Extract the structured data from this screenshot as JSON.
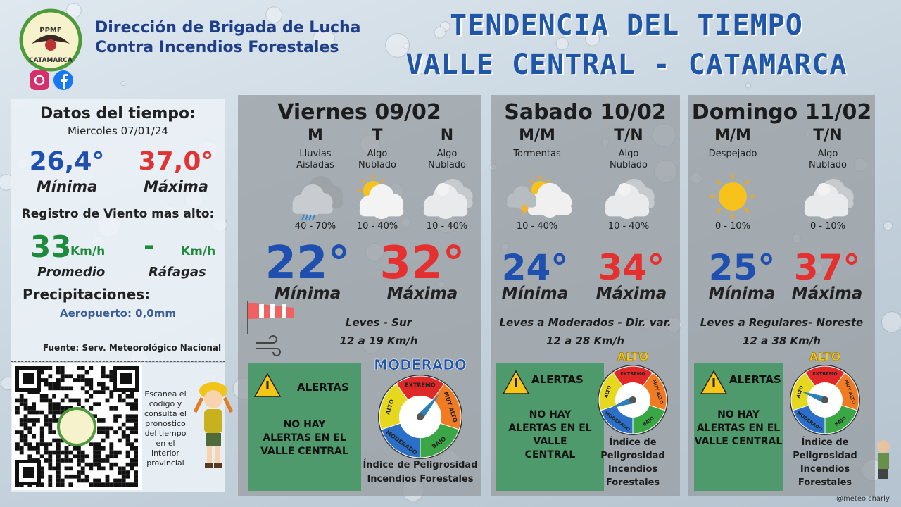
{
  "header": {
    "org_line1": "Dirección de Brigada de Lucha",
    "org_line2": "Contra Incendios Forestales",
    "logo_top": "PPMF",
    "logo_bottom": "CATAMARCA",
    "title_line1": "TENDENCIA DEL TIEMPO",
    "title_line2": "VALLE CENTRAL - CATAMARCA"
  },
  "current": {
    "title": "Datos del tiempo:",
    "date": "Miercoles 07/01/24",
    "min": "26,4°",
    "min_label": "Mínima",
    "max": "37,0°",
    "max_label": "Máxima",
    "wind_title": "Registro de Viento mas alto:",
    "wind_avg": "33",
    "wind_avg_unit": "Km/h",
    "wind_avg_label": "Promedio",
    "wind_gust": "-",
    "wind_gust_unit": "Km/h",
    "wind_gust_label": "Ráfagas",
    "precip_title": "Precipitaciones:",
    "precip_airport": "Aeropuerto: 0,0mm",
    "source": "Fuente: Serv. Meteorológico Nacional"
  },
  "qr": {
    "text_lines": [
      "Escanea el",
      "codigo y",
      "consulta el",
      "pronostico",
      "del tiempo",
      "en el",
      "interior",
      "provincial"
    ]
  },
  "days": [
    {
      "name": "Viernes 09/02",
      "periods": [
        {
          "label": "M",
          "desc": "Lluvias Aisladas",
          "prob": "40 - 70%"
        },
        {
          "label": "T",
          "desc": "Algo Nublado",
          "prob": "10 - 40%"
        },
        {
          "label": "N",
          "desc": "Algo Nublado",
          "prob": "10 - 40%"
        }
      ],
      "min": "22°",
      "min_label": "Mínima",
      "max": "32°",
      "max_label": "Máxima",
      "wind_desc": "Leves - Sur",
      "wind_speed": "12 a 19 Km/h",
      "alert_title": "ALERTAS",
      "alert_lines": [
        "NO HAY",
        "ALERTAS EN EL",
        "VALLE CENTRAL"
      ],
      "danger_level": "MODERADO",
      "danger_caption": [
        "Índice de Peligrosidad",
        "Incendios Forestales"
      ]
    },
    {
      "name": "Sabado 10/02",
      "periods": [
        {
          "label": "M/M",
          "desc": "Tormentas",
          "prob": "10 - 40%"
        },
        {
          "label": "T/N",
          "desc": "Algo Nublado",
          "prob": "10 - 40%"
        }
      ],
      "min": "24°",
      "min_label": "Mínima",
      "max": "34°",
      "max_label": "Máxima",
      "wind_desc": "Leves a Moderados - Dir. var.",
      "wind_speed": "12 a 28 Km/h",
      "alert_title": "ALERTAS",
      "alert_lines": [
        "NO HAY",
        "ALERTAS EN EL",
        "VALLE",
        "CENTRAL"
      ],
      "danger_level": "ALTO",
      "danger_caption": [
        "Índice de",
        "Peligrosidad",
        "Incendios",
        "Forestales"
      ]
    },
    {
      "name": "Domingo 11/02",
      "periods": [
        {
          "label": "M/M",
          "desc": "Despejado",
          "prob": "0 - 10%"
        },
        {
          "label": "T/N",
          "desc": "Algo Nublado",
          "prob": "0 - 10%"
        }
      ],
      "min": "25°",
      "min_label": "Mínima",
      "max": "37°",
      "max_label": "Máxima",
      "wind_desc": "Leves a Regulares- Noreste",
      "wind_speed": "12 a 38 Km/h",
      "alert_title": "ALERTAS",
      "alert_lines": [
        "NO HAY",
        "ALERTAS EN EL",
        "VALLE CENTRAL"
      ],
      "danger_level": "ALTO",
      "danger_caption": [
        "Índice de",
        "Peligrosidad",
        "Incendios",
        "Forestales"
      ]
    }
  ],
  "gauge_labels": [
    "EXTREMO",
    "MUY ALTO",
    "BAJO",
    "MODERADO",
    "ALTO"
  ],
  "credit": "@meteo.charly"
}
